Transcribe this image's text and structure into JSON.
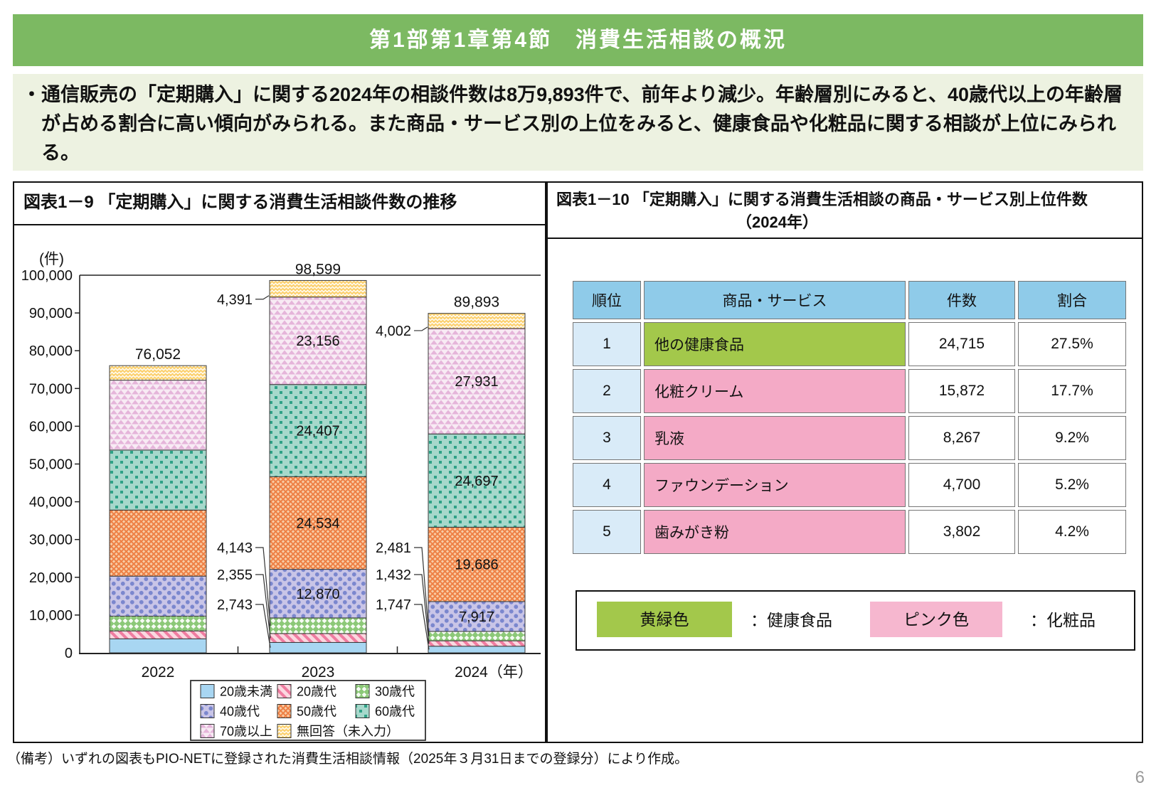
{
  "page": {
    "header_title": "第1部第1章第4節　消費生活相談の概況",
    "summary_text": "・通信販売の「定期購入」に関する2024年の相談件数は8万9,893件で、前年より減少。年齢層別にみると、40歳代以上の年齢層が占める割合に高い傾向がみられる。また商品・サービス別の上位をみると、健康食品や化粧品に関する相談が上位にみられる。",
    "footnote": "（備考）いずれの図表もPIO-NETに登録された消費生活相談情報（2025年３月31日までの登録分）により作成。",
    "page_number": "6",
    "colors": {
      "header_green": "#7cb962",
      "summary_bg": "#edf2e1"
    }
  },
  "figure9": {
    "title": "図表1－9 「定期購入」に関する消費生活相談件数の推移"
  },
  "chart_data": {
    "type": "bar",
    "stacked": true,
    "title": "図表1－9 「定期購入」に関する消費生活相談件数の推移",
    "unit_label": "(件)",
    "ylim": [
      0,
      100000
    ],
    "ytick_interval": 10000,
    "grid": false,
    "legend_position": "bottom",
    "categories": [
      "2022",
      "2023",
      "2024"
    ],
    "x_last_suffix": "（年）",
    "totals": [
      76052,
      98599,
      89893
    ],
    "series": [
      {
        "name": "20歳未満",
        "values": [
          3700,
          2743,
          1747
        ],
        "pattern": "solid",
        "base": "#a8d6f2",
        "accent": "#a8d6f2"
      },
      {
        "name": "20歳代",
        "values": [
          2100,
          2355,
          1432
        ],
        "pattern": "stripes",
        "base": "#fbd8e0",
        "accent": "#ef7ca0"
      },
      {
        "name": "30歳代",
        "values": [
          3900,
          4143,
          2481
        ],
        "pattern": "diamonds",
        "base": "#8cc878",
        "accent": "#ffffff"
      },
      {
        "name": "40歳代",
        "values": [
          10600,
          12870,
          7917
        ],
        "pattern": "dots",
        "base": "#c9c5e7",
        "accent": "#7b87ce"
      },
      {
        "name": "50歳代",
        "values": [
          17500,
          24534,
          19686
        ],
        "pattern": "cross",
        "base": "#f8cda6",
        "accent": "#ee8045"
      },
      {
        "name": "60歳代",
        "values": [
          15900,
          24407,
          24697
        ],
        "pattern": "squares",
        "base": "#a6d8cb",
        "accent": "#2fa287"
      },
      {
        "name": "70歳以上",
        "values": [
          18500,
          23156,
          27931
        ],
        "pattern": "triangles",
        "base": "#f8ebf4",
        "accent": "#e5b5da"
      },
      {
        "name": "無回答（未入力）",
        "values": [
          3852,
          4391,
          4002
        ],
        "pattern": "zigzag",
        "base": "#fcd170",
        "accent": "#ffffff"
      }
    ],
    "values_2022_estimated_from_plot": true,
    "segment_labels_shown_for": [
      "2023",
      "2024"
    ]
  },
  "figure10": {
    "title_line1": "図表1－10 「定期購入」に関する消費生活相談の商品・サービス別上位件数",
    "title_line2": "（2024年）",
    "table": {
      "headers": [
        "順位",
        "商品・サービス",
        "件数",
        "割合"
      ],
      "rows": [
        {
          "rank": "1",
          "item": "他の健康食品",
          "count": "24,715",
          "share": "27.5%",
          "category": "health"
        },
        {
          "rank": "2",
          "item": "化粧クリーム",
          "count": "15,872",
          "share": "17.7%",
          "category": "cosmetics"
        },
        {
          "rank": "3",
          "item": "乳液",
          "count": "8,267",
          "share": "9.2%",
          "category": "cosmetics"
        },
        {
          "rank": "4",
          "item": "ファウンデーション",
          "count": "4,700",
          "share": "5.2%",
          "category": "cosmetics"
        },
        {
          "rank": "5",
          "item": "歯みがき粉",
          "count": "3,802",
          "share": "4.2%",
          "category": "cosmetics"
        }
      ]
    },
    "legend": {
      "green_label": "黄緑色",
      "green_desc": "：健康食品",
      "pink_label": "ピンク色",
      "pink_desc": "：化粧品"
    },
    "colors": {
      "header_blue": "#8fcbe9",
      "rank_blue": "#d9ebf8",
      "health_green": "#a3c84b",
      "cosmetics_pink": "#f4aac6",
      "legend_pink": "#f6b7cf"
    }
  }
}
